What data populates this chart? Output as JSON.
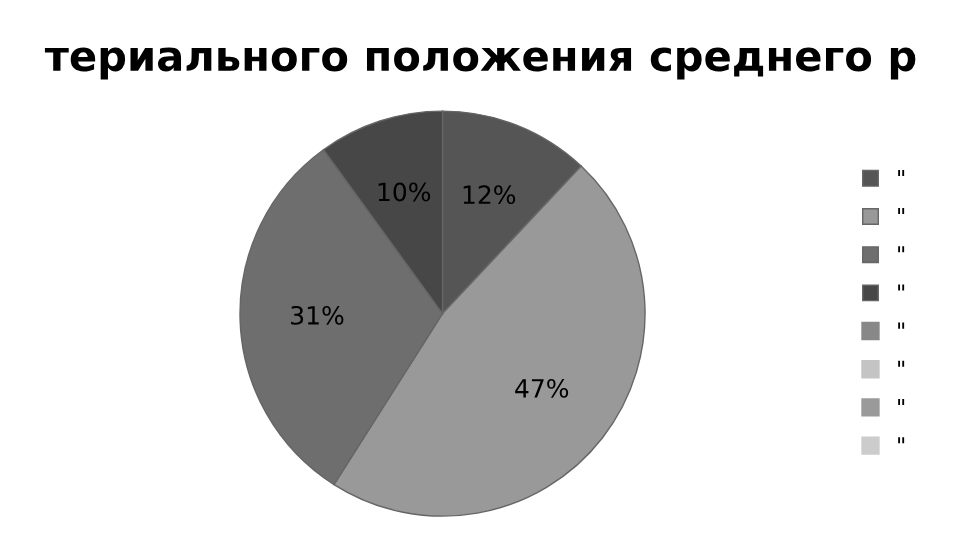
{
  "chart_data": {
    "type": "pie",
    "title": "териального положения среднего р",
    "categories": [
      "\"",
      "\"",
      "\"",
      "\"",
      "\"",
      "\"",
      "\"",
      "\""
    ],
    "values": [
      12,
      47,
      31,
      10,
      null,
      null,
      null,
      null
    ],
    "value_labels": [
      "12%",
      "47%",
      "31%",
      "10%",
      null,
      null,
      null,
      null
    ],
    "colors": [
      "#555555",
      "#999999",
      "#6e6e6e",
      "#474747",
      "#888888",
      "#c4c4c4",
      "#9a9a9a",
      "#cccccc"
    ],
    "legend": "right"
  }
}
